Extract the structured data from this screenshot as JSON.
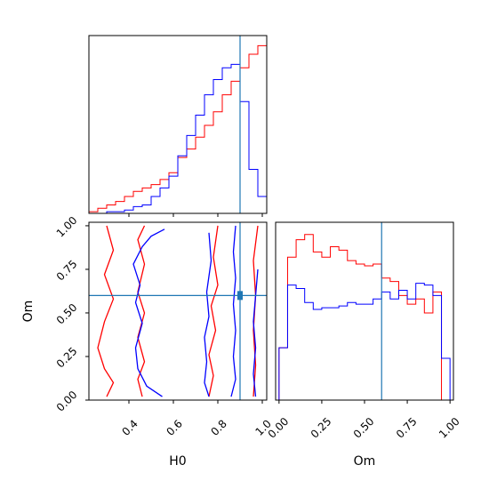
{
  "chart_data": [
    {
      "type": "step",
      "panel": "H0-marginal",
      "xlim": [
        0.22,
        1.02
      ],
      "truth_x": 0.9,
      "truth_color": "#1f77b4",
      "bin_edges": [
        0.22,
        0.26,
        0.3,
        0.34,
        0.38,
        0.42,
        0.46,
        0.5,
        0.54,
        0.58,
        0.62,
        0.66,
        0.7,
        0.74,
        0.78,
        0.82,
        0.86,
        0.9,
        0.94,
        0.98,
        1.02
      ],
      "series": [
        {
          "color": "#ff0000",
          "values": [
            0.01,
            0.03,
            0.05,
            0.07,
            0.1,
            0.13,
            0.15,
            0.17,
            0.2,
            0.24,
            0.33,
            0.38,
            0.45,
            0.52,
            0.6,
            0.7,
            0.78,
            0.86,
            0.94,
            0.99
          ]
        },
        {
          "color": "#0000ff",
          "values": [
            0.0,
            0.0,
            0.01,
            0.01,
            0.02,
            0.04,
            0.05,
            0.1,
            0.15,
            0.22,
            0.34,
            0.46,
            0.58,
            0.7,
            0.79,
            0.86,
            0.88,
            0.66,
            0.26,
            0.1
          ]
        }
      ]
    },
    {
      "type": "contour",
      "panel": "H0-Om-joint",
      "xlabel": "H0",
      "ylabel": "Om",
      "xlim": [
        0.22,
        1.02
      ],
      "ylim": [
        0.0,
        1.02
      ],
      "xticks": [
        "0.4",
        "0.6",
        "0.8",
        "1.0"
      ],
      "xtick_values": [
        0.4,
        0.6,
        0.8,
        1.0
      ],
      "yticks": [
        "0.00",
        "0.25",
        "0.50",
        "0.75",
        "1.00"
      ],
      "ytick_values": [
        0.0,
        0.25,
        0.5,
        0.75,
        1.0
      ],
      "truth": [
        0.9,
        0.6
      ],
      "truth_color": "#1f77b4",
      "series": [
        {
          "color": "#ff0000",
          "contours": [
            [
              [
                0.3,
                0.02
              ],
              [
                0.33,
                0.1
              ],
              [
                0.29,
                0.18
              ],
              [
                0.26,
                0.3
              ],
              [
                0.29,
                0.45
              ],
              [
                0.33,
                0.58
              ],
              [
                0.29,
                0.72
              ],
              [
                0.33,
                0.86
              ],
              [
                0.3,
                1.0
              ]
            ],
            [
              [
                0.46,
                0.02
              ],
              [
                0.44,
                0.12
              ],
              [
                0.47,
                0.22
              ],
              [
                0.44,
                0.36
              ],
              [
                0.47,
                0.5
              ],
              [
                0.44,
                0.62
              ],
              [
                0.47,
                0.78
              ],
              [
                0.44,
                0.92
              ],
              [
                0.47,
                1.0
              ]
            ],
            [
              [
                0.76,
                0.02
              ],
              [
                0.78,
                0.14
              ],
              [
                0.76,
                0.26
              ],
              [
                0.79,
                0.4
              ],
              [
                0.77,
                0.54
              ],
              [
                0.8,
                0.66
              ],
              [
                0.78,
                0.82
              ],
              [
                0.8,
                1.0
              ]
            ],
            [
              [
                0.96,
                0.02
              ],
              [
                0.97,
                0.2
              ],
              [
                0.96,
                0.4
              ],
              [
                0.97,
                0.6
              ],
              [
                0.96,
                0.8
              ],
              [
                0.98,
                1.0
              ]
            ]
          ]
        },
        {
          "color": "#0000ff",
          "contours": [
            [
              [
                0.55,
                0.02
              ],
              [
                0.48,
                0.08
              ],
              [
                0.44,
                0.18
              ],
              [
                0.43,
                0.3
              ],
              [
                0.46,
                0.44
              ],
              [
                0.43,
                0.56
              ],
              [
                0.45,
                0.66
              ],
              [
                0.42,
                0.78
              ],
              [
                0.46,
                0.88
              ],
              [
                0.5,
                0.94
              ],
              [
                0.56,
                0.98
              ]
            ],
            [
              [
                0.86,
                0.02
              ],
              [
                0.88,
                0.12
              ],
              [
                0.87,
                0.25
              ],
              [
                0.88,
                0.4
              ],
              [
                0.87,
                0.55
              ],
              [
                0.88,
                0.7
              ],
              [
                0.87,
                0.85
              ],
              [
                0.88,
                1.0
              ]
            ],
            [
              [
                0.76,
                0.02
              ],
              [
                0.74,
                0.1
              ],
              [
                0.75,
                0.22
              ],
              [
                0.74,
                0.36
              ],
              [
                0.76,
                0.48
              ],
              [
                0.75,
                0.62
              ],
              [
                0.77,
                0.8
              ],
              [
                0.76,
                0.96
              ]
            ],
            [
              [
                0.97,
                0.02
              ],
              [
                0.96,
                0.15
              ],
              [
                0.97,
                0.3
              ],
              [
                0.96,
                0.45
              ],
              [
                0.97,
                0.6
              ],
              [
                0.98,
                0.75
              ]
            ]
          ]
        }
      ]
    },
    {
      "type": "step",
      "panel": "Om-marginal",
      "xlabel": "Om",
      "xlim": [
        -0.02,
        1.02
      ],
      "xticks": [
        "0.00",
        "0.25",
        "0.50",
        "0.75",
        "1.00"
      ],
      "xtick_values": [
        0.0,
        0.25,
        0.5,
        0.75,
        1.0
      ],
      "truth_x": 0.6,
      "truth_color": "#1f77b4",
      "bin_edges": [
        0.0,
        0.05,
        0.1,
        0.15,
        0.2,
        0.25,
        0.3,
        0.35,
        0.4,
        0.45,
        0.5,
        0.55,
        0.6,
        0.65,
        0.7,
        0.75,
        0.8,
        0.85,
        0.9,
        0.95,
        1.0
      ],
      "series": [
        {
          "color": "#ff0000",
          "values": [
            0.3,
            0.82,
            0.92,
            0.95,
            0.85,
            0.82,
            0.88,
            0.86,
            0.8,
            0.78,
            0.77,
            0.78,
            0.7,
            0.68,
            0.6,
            0.55,
            0.58,
            0.5,
            0.62,
            0.0
          ]
        },
        {
          "color": "#0000ff",
          "values": [
            0.3,
            0.66,
            0.64,
            0.56,
            0.52,
            0.53,
            0.53,
            0.54,
            0.56,
            0.55,
            0.55,
            0.58,
            0.62,
            0.58,
            0.63,
            0.58,
            0.67,
            0.66,
            0.6,
            0.24
          ]
        }
      ]
    }
  ]
}
